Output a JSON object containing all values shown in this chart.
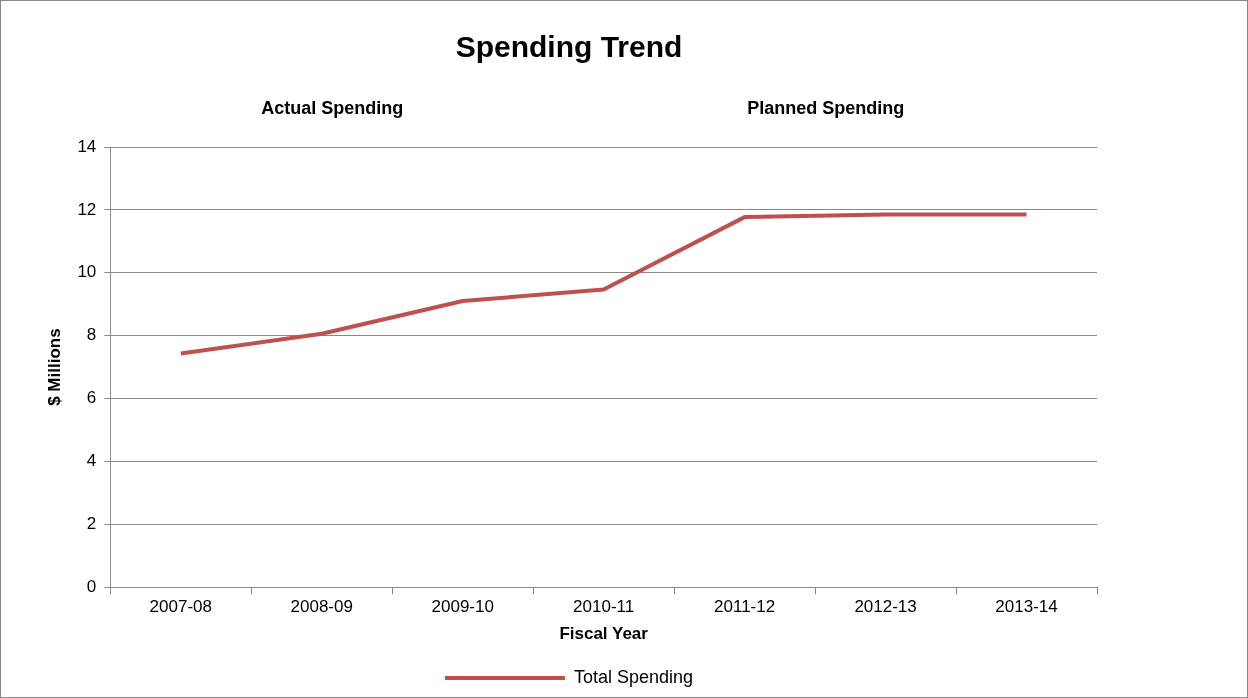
{
  "chart_data": {
    "type": "line",
    "title": "Spending Trend",
    "annotations": [
      "Actual Spending",
      "Planned Spending"
    ],
    "xlabel": "Fiscal Year",
    "ylabel": "$ Millions",
    "categories": [
      "2007-08",
      "2008-09",
      "2009-10",
      "2010-11",
      "2011-12",
      "2012-13",
      "2013-14"
    ],
    "series": [
      {
        "name": "Total Spending",
        "color": "#c0504d",
        "values": [
          7.43,
          8.06,
          9.1,
          9.47,
          11.77,
          11.85,
          11.85
        ]
      }
    ],
    "ylim": [
      0,
      14
    ],
    "yticks": [
      0,
      2,
      4,
      6,
      8,
      10,
      12,
      14
    ],
    "grid": "y",
    "legend": "bottom",
    "marker": "none",
    "line_style": "solid"
  }
}
